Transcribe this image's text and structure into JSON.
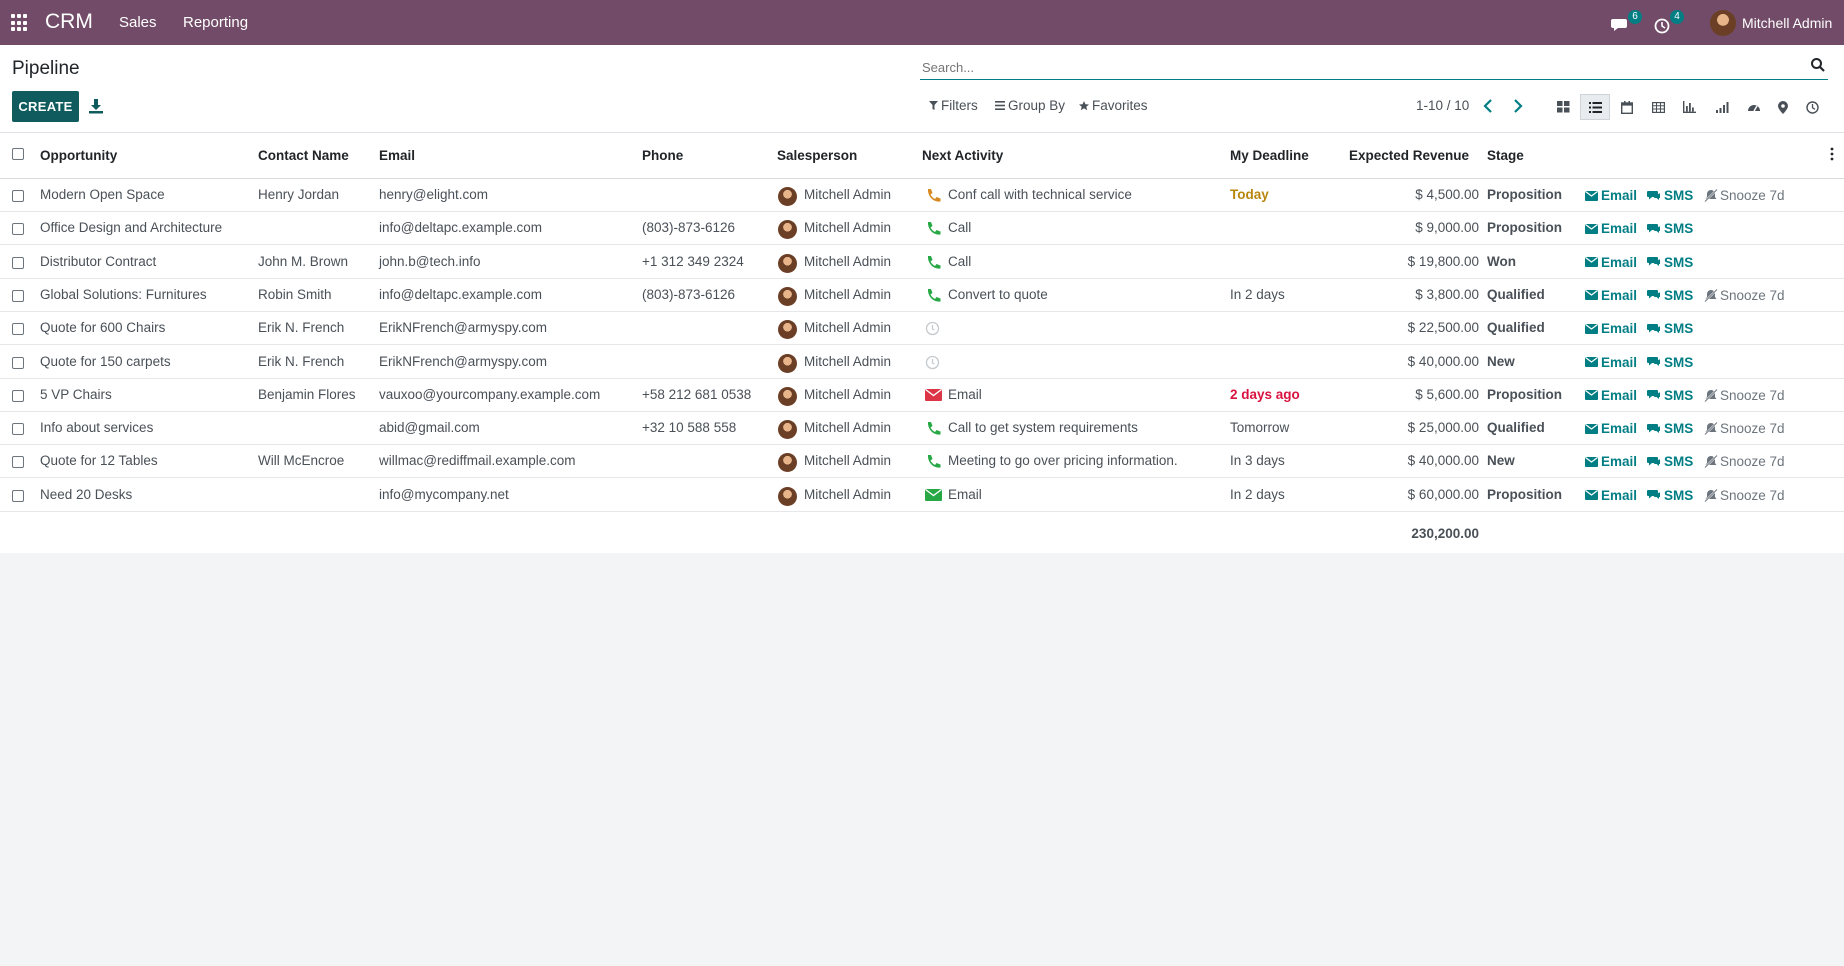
{
  "navbar": {
    "app_name": "CRM",
    "menus": [
      "Sales",
      "Reporting"
    ],
    "messages_count": "6",
    "activities_count": "4",
    "user_name": "Mitchell Admin",
    "color": "#714B67"
  },
  "control_panel": {
    "title": "Pipeline",
    "create_label": "CREATE",
    "search_placeholder": "Search...",
    "filters_label": "Filters",
    "group_by_label": "Group By",
    "favorites_label": "Favorites",
    "pager": "1-10 / 10",
    "views": [
      "kanban-icon",
      "list-icon",
      "calendar-icon",
      "pivot-icon",
      "graph-icon",
      "cohort-icon",
      "dashboard-icon",
      "map-icon",
      "activity-icon"
    ],
    "active_view": "list-icon"
  },
  "table": {
    "columns": {
      "opportunity": "Opportunity",
      "contact": "Contact Name",
      "email": "Email",
      "phone": "Phone",
      "salesperson": "Salesperson",
      "next_activity": "Next Activity",
      "deadline": "My Deadline",
      "revenue": "Expected Revenue",
      "stage": "Stage"
    },
    "action_labels": {
      "email": "Email",
      "sms": "SMS",
      "snooze": "Snooze 7d"
    },
    "rows": [
      {
        "opportunity": "Modern Open Space",
        "contact": "Henry Jordan",
        "email": "henry@elight.com",
        "phone": "",
        "salesperson": "Mitchell Admin",
        "activity_type": "phone-orange",
        "next_activity": "Conf call with technical service",
        "deadline": "Today",
        "deadline_state": "today",
        "revenue": "$ 4,500.00",
        "stage": "Proposition",
        "snooze": true
      },
      {
        "opportunity": "Office Design and Architecture",
        "contact": "",
        "email": "info@deltapc.example.com",
        "phone": "(803)-873-6126",
        "salesperson": "Mitchell Admin",
        "activity_type": "phone-green",
        "next_activity": "Call",
        "deadline": "",
        "deadline_state": "",
        "revenue": "$ 9,000.00",
        "stage": "Proposition",
        "snooze": false
      },
      {
        "opportunity": "Distributor Contract",
        "contact": "John M. Brown",
        "email": "john.b@tech.info",
        "phone": "+1 312 349 2324",
        "salesperson": "Mitchell Admin",
        "activity_type": "phone-green",
        "next_activity": "Call",
        "deadline": "",
        "deadline_state": "",
        "revenue": "$ 19,800.00",
        "stage": "Won",
        "snooze": false
      },
      {
        "opportunity": "Global Solutions: Furnitures",
        "contact": "Robin Smith",
        "email": "info@deltapc.example.com",
        "phone": "(803)-873-6126",
        "salesperson": "Mitchell Admin",
        "activity_type": "phone-green",
        "next_activity": "Convert to quote",
        "deadline": "In 2 days",
        "deadline_state": "planned",
        "revenue": "$ 3,800.00",
        "stage": "Qualified",
        "snooze": true
      },
      {
        "opportunity": "Quote for 600 Chairs",
        "contact": "Erik N. French",
        "email": "ErikNFrench@armyspy.com",
        "phone": "",
        "salesperson": "Mitchell Admin",
        "activity_type": "clock-grey",
        "next_activity": "",
        "deadline": "",
        "deadline_state": "",
        "revenue": "$ 22,500.00",
        "stage": "Qualified",
        "snooze": false
      },
      {
        "opportunity": "Quote for 150 carpets",
        "contact": "Erik N. French",
        "email": "ErikNFrench@armyspy.com",
        "phone": "",
        "salesperson": "Mitchell Admin",
        "activity_type": "clock-grey",
        "next_activity": "",
        "deadline": "",
        "deadline_state": "",
        "revenue": "$ 40,000.00",
        "stage": "New",
        "snooze": false
      },
      {
        "opportunity": "5 VP Chairs",
        "contact": "Benjamin Flores",
        "email": "vauxoo@yourcompany.example.com",
        "phone": "+58 212 681 0538",
        "salesperson": "Mitchell Admin",
        "activity_type": "envelope-red",
        "next_activity": "Email",
        "deadline": "2 days ago",
        "deadline_state": "overdue",
        "revenue": "$ 5,600.00",
        "stage": "Proposition",
        "snooze": true
      },
      {
        "opportunity": "Info about services",
        "contact": "",
        "email": "abid@gmail.com",
        "phone": "+32 10 588 558",
        "salesperson": "Mitchell Admin",
        "activity_type": "phone-green",
        "next_activity": "Call to get system requirements",
        "deadline": "Tomorrow",
        "deadline_state": "planned",
        "revenue": "$ 25,000.00",
        "stage": "Qualified",
        "snooze": true
      },
      {
        "opportunity": "Quote for 12 Tables",
        "contact": "Will McEncroe",
        "email": "willmac@rediffmail.example.com",
        "phone": "",
        "salesperson": "Mitchell Admin",
        "activity_type": "phone-green",
        "next_activity": "Meeting to go over pricing information.",
        "deadline": "In 3 days",
        "deadline_state": "planned",
        "revenue": "$ 40,000.00",
        "stage": "New",
        "snooze": true
      },
      {
        "opportunity": "Need 20 Desks",
        "contact": "",
        "email": "info@mycompany.net",
        "phone": "",
        "salesperson": "Mitchell Admin",
        "activity_type": "envelope-green",
        "next_activity": "Email",
        "deadline": "In 2 days",
        "deadline_state": "planned",
        "revenue": "$ 60,000.00",
        "stage": "Proposition",
        "snooze": true
      }
    ],
    "total_revenue": "230,200.00"
  },
  "colors": {
    "accent": "#017e84",
    "today": "#b8860b",
    "overdue": "#d9133f",
    "phone_green": "#28a745",
    "phone_orange": "#d68a1f",
    "envelope_red": "#dc3545"
  }
}
